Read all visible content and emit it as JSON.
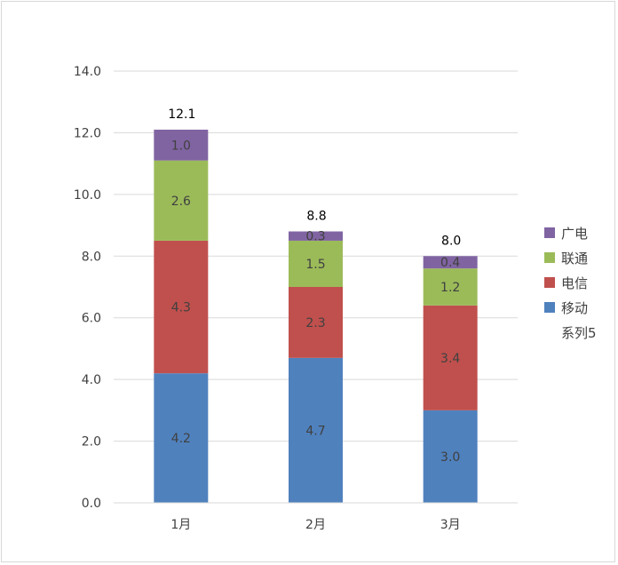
{
  "chart_data": {
    "type": "bar",
    "stacked": true,
    "categories": [
      "1月",
      "2月",
      "3月"
    ],
    "series": [
      {
        "name": "移动",
        "color": "#4f81bd",
        "values": [
          4.2,
          4.7,
          3.0
        ],
        "labels": [
          "4.2",
          "4.7",
          "3.0"
        ]
      },
      {
        "name": "电信",
        "color": "#c0504d",
        "values": [
          4.3,
          2.3,
          3.4
        ],
        "labels": [
          "4.3",
          "2.3",
          "3.4"
        ]
      },
      {
        "name": "联通",
        "color": "#9bbb59",
        "values": [
          2.6,
          1.5,
          1.2
        ],
        "labels": [
          "2.6",
          "1.5",
          "1.2"
        ]
      },
      {
        "name": "广电",
        "color": "#8064a2",
        "values": [
          1.0,
          0.3,
          0.4
        ],
        "labels": [
          "1.0",
          "0.3",
          "0.4"
        ]
      }
    ],
    "totals_series": {
      "name": "系列5",
      "values": [
        12.1,
        8.8,
        8.0
      ],
      "labels": [
        "12.1",
        "8.8",
        "8.0"
      ]
    },
    "ylim": [
      0,
      14
    ],
    "y_ticks": [
      "0.0",
      "2.0",
      "4.0",
      "6.0",
      "8.0",
      "10.0",
      "12.0",
      "14.0"
    ],
    "grid": true,
    "legend_position": "right",
    "legend_order": [
      "广电",
      "联通",
      "电信",
      "移动",
      "系列5"
    ],
    "title": "",
    "xlabel": "",
    "ylabel": ""
  }
}
